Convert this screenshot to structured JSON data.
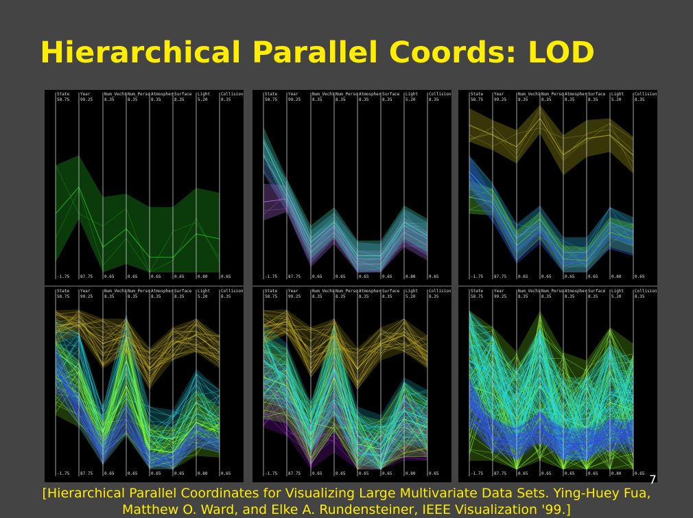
{
  "slide": {
    "title": "Hierarchical Parallel Coords: LOD",
    "number": "7",
    "citation_line1": "[Hierarchical Parallel Coordinates for Visualizing Large Multivariate Data Sets. Ying-Huey Fua,",
    "citation_line2": "Matthew O. Ward, and Elke A. Rundensteiner, IEEE Visualization '99.]"
  },
  "axes": [
    "State",
    "Year",
    "Num_Vechi",
    "Num_Perso",
    "Atmospher",
    "Surface",
    "Light",
    "Collision"
  ],
  "axis_max": [
    "58.75",
    "99.25",
    "8.35",
    "8.35",
    "8.35",
    "8.35",
    "5.20",
    "8.35"
  ],
  "axis_min": [
    "-1.75",
    "87.75",
    "0.65",
    "0.65",
    "0.65",
    "0.65",
    "0.80",
    "0.65"
  ],
  "colors": {
    "background": "#444444",
    "title": "#ffee00",
    "citation": "#ffee00",
    "panel_bg": "#000000",
    "green": "#22cc22",
    "lime": "#88ff22",
    "cyan": "#22e8e8",
    "olive": "#b0a020",
    "purple": "#a020e0",
    "blue": "#2040e0"
  },
  "panels": [
    {
      "level": 1,
      "clusters": [
        {
          "color": "#1faa1f",
          "center": [
            0.65,
            0.49,
            0.85,
            0.74,
            0.91,
            0.91,
            0.77,
            0.8
          ],
          "width": [
            0.58,
            0.38,
            0.6,
            0.42,
            0.6,
            0.6,
            0.55,
            0.55
          ]
        }
      ]
    },
    {
      "level": 2,
      "clusters": [
        {
          "color": "#5a8cd8",
          "center": [
            0.3,
            0.55,
            0.85,
            0.72,
            0.92,
            0.92,
            0.72,
            0.8
          ],
          "width": [
            0.22,
            0.18,
            0.2,
            0.16,
            0.2,
            0.18,
            0.2,
            0.2
          ]
        },
        {
          "color": "#9a60c8",
          "center": [
            0.58,
            0.56,
            0.88,
            0.76,
            0.95,
            0.95,
            0.76,
            0.84
          ],
          "width": [
            0.22,
            0.16,
            0.18,
            0.14,
            0.16,
            0.16,
            0.18,
            0.18
          ]
        },
        {
          "color": "#3ccaaa",
          "center": [
            0.22,
            0.52,
            0.82,
            0.7,
            0.9,
            0.9,
            0.7,
            0.78
          ],
          "width": [
            0.18,
            0.16,
            0.2,
            0.18,
            0.18,
            0.18,
            0.2,
            0.2
          ]
        }
      ]
    },
    {
      "level": 3,
      "clusters": [
        {
          "color": "#a09a1a",
          "center": [
            0.12,
            0.18,
            0.25,
            0.08,
            0.3,
            0.2,
            0.18,
            0.3
          ],
          "width": [
            0.2,
            0.18,
            0.2,
            0.18,
            0.24,
            0.22,
            0.2,
            0.22
          ]
        },
        {
          "color": "#2aa8d8",
          "center": [
            0.4,
            0.55,
            0.8,
            0.68,
            0.88,
            0.88,
            0.7,
            0.76
          ],
          "width": [
            0.2,
            0.16,
            0.18,
            0.16,
            0.18,
            0.18,
            0.18,
            0.18
          ]
        },
        {
          "color": "#5cd03a",
          "center": [
            0.55,
            0.58,
            0.84,
            0.72,
            0.92,
            0.93,
            0.76,
            0.8
          ],
          "width": [
            0.2,
            0.16,
            0.18,
            0.16,
            0.16,
            0.16,
            0.18,
            0.18
          ]
        },
        {
          "color": "#2f58d8",
          "center": [
            0.42,
            0.62,
            0.86,
            0.76,
            0.94,
            0.94,
            0.78,
            0.82
          ],
          "width": [
            0.22,
            0.16,
            0.18,
            0.14,
            0.14,
            0.14,
            0.16,
            0.16
          ]
        }
      ]
    },
    {
      "level": 4,
      "clusters": [
        {
          "color": "#22d8e8",
          "center": [
            0.3,
            0.4,
            0.78,
            0.35,
            0.8,
            0.82,
            0.6,
            0.7
          ],
          "width": [
            0.4,
            0.45,
            0.3,
            0.55,
            0.35,
            0.35,
            0.4,
            0.35
          ]
        },
        {
          "color": "#88ff22",
          "center": [
            0.45,
            0.55,
            0.85,
            0.5,
            0.88,
            0.9,
            0.72,
            0.78
          ],
          "width": [
            0.45,
            0.4,
            0.25,
            0.6,
            0.3,
            0.3,
            0.4,
            0.3
          ]
        },
        {
          "color": "#b0a020",
          "center": [
            0.15,
            0.12,
            0.25,
            0.2,
            0.4,
            0.25,
            0.2,
            0.3
          ],
          "width": [
            0.2,
            0.15,
            0.3,
            0.2,
            0.25,
            0.2,
            0.2,
            0.2
          ]
        },
        {
          "color": "#3050e0",
          "center": [
            0.4,
            0.65,
            0.9,
            0.7,
            0.95,
            0.95,
            0.8,
            0.85
          ],
          "width": [
            0.3,
            0.2,
            0.15,
            0.2,
            0.1,
            0.1,
            0.15,
            0.1
          ]
        }
      ]
    },
    {
      "level": 5,
      "clusters": [
        {
          "color": "#a020e0",
          "center": [
            0.5,
            0.6,
            0.88,
            0.6,
            0.9,
            0.92,
            0.75,
            0.8
          ],
          "width": [
            0.5,
            0.4,
            0.25,
            0.6,
            0.25,
            0.25,
            0.4,
            0.3
          ]
        },
        {
          "color": "#88ff22",
          "center": [
            0.45,
            0.5,
            0.8,
            0.45,
            0.85,
            0.88,
            0.7,
            0.75
          ],
          "width": [
            0.5,
            0.45,
            0.35,
            0.65,
            0.35,
            0.35,
            0.45,
            0.35
          ]
        },
        {
          "color": "#22d8e8",
          "center": [
            0.35,
            0.45,
            0.75,
            0.4,
            0.8,
            0.85,
            0.65,
            0.7
          ],
          "width": [
            0.45,
            0.4,
            0.3,
            0.55,
            0.35,
            0.35,
            0.4,
            0.35
          ]
        },
        {
          "color": "#b0a020",
          "center": [
            0.15,
            0.12,
            0.3,
            0.2,
            0.4,
            0.25,
            0.2,
            0.3
          ],
          "width": [
            0.2,
            0.15,
            0.3,
            0.2,
            0.25,
            0.2,
            0.2,
            0.2
          ]
        }
      ]
    },
    {
      "level": 6,
      "clusters": [
        {
          "color": "#88ff22",
          "center": [
            0.5,
            0.55,
            0.7,
            0.5,
            0.7,
            0.75,
            0.6,
            0.65
          ],
          "width": [
            0.9,
            0.8,
            0.8,
            0.9,
            0.8,
            0.8,
            0.9,
            0.8
          ]
        },
        {
          "color": "#22d8e8",
          "center": [
            0.35,
            0.45,
            0.65,
            0.45,
            0.7,
            0.7,
            0.55,
            0.6
          ],
          "width": [
            0.6,
            0.5,
            0.5,
            0.6,
            0.5,
            0.5,
            0.6,
            0.5
          ]
        },
        {
          "color": "#3050e0",
          "center": [
            0.6,
            0.8,
            0.85,
            0.75,
            0.85,
            0.85,
            0.8,
            0.8
          ],
          "width": [
            0.3,
            0.2,
            0.2,
            0.2,
            0.2,
            0.2,
            0.2,
            0.2
          ]
        }
      ]
    }
  ]
}
